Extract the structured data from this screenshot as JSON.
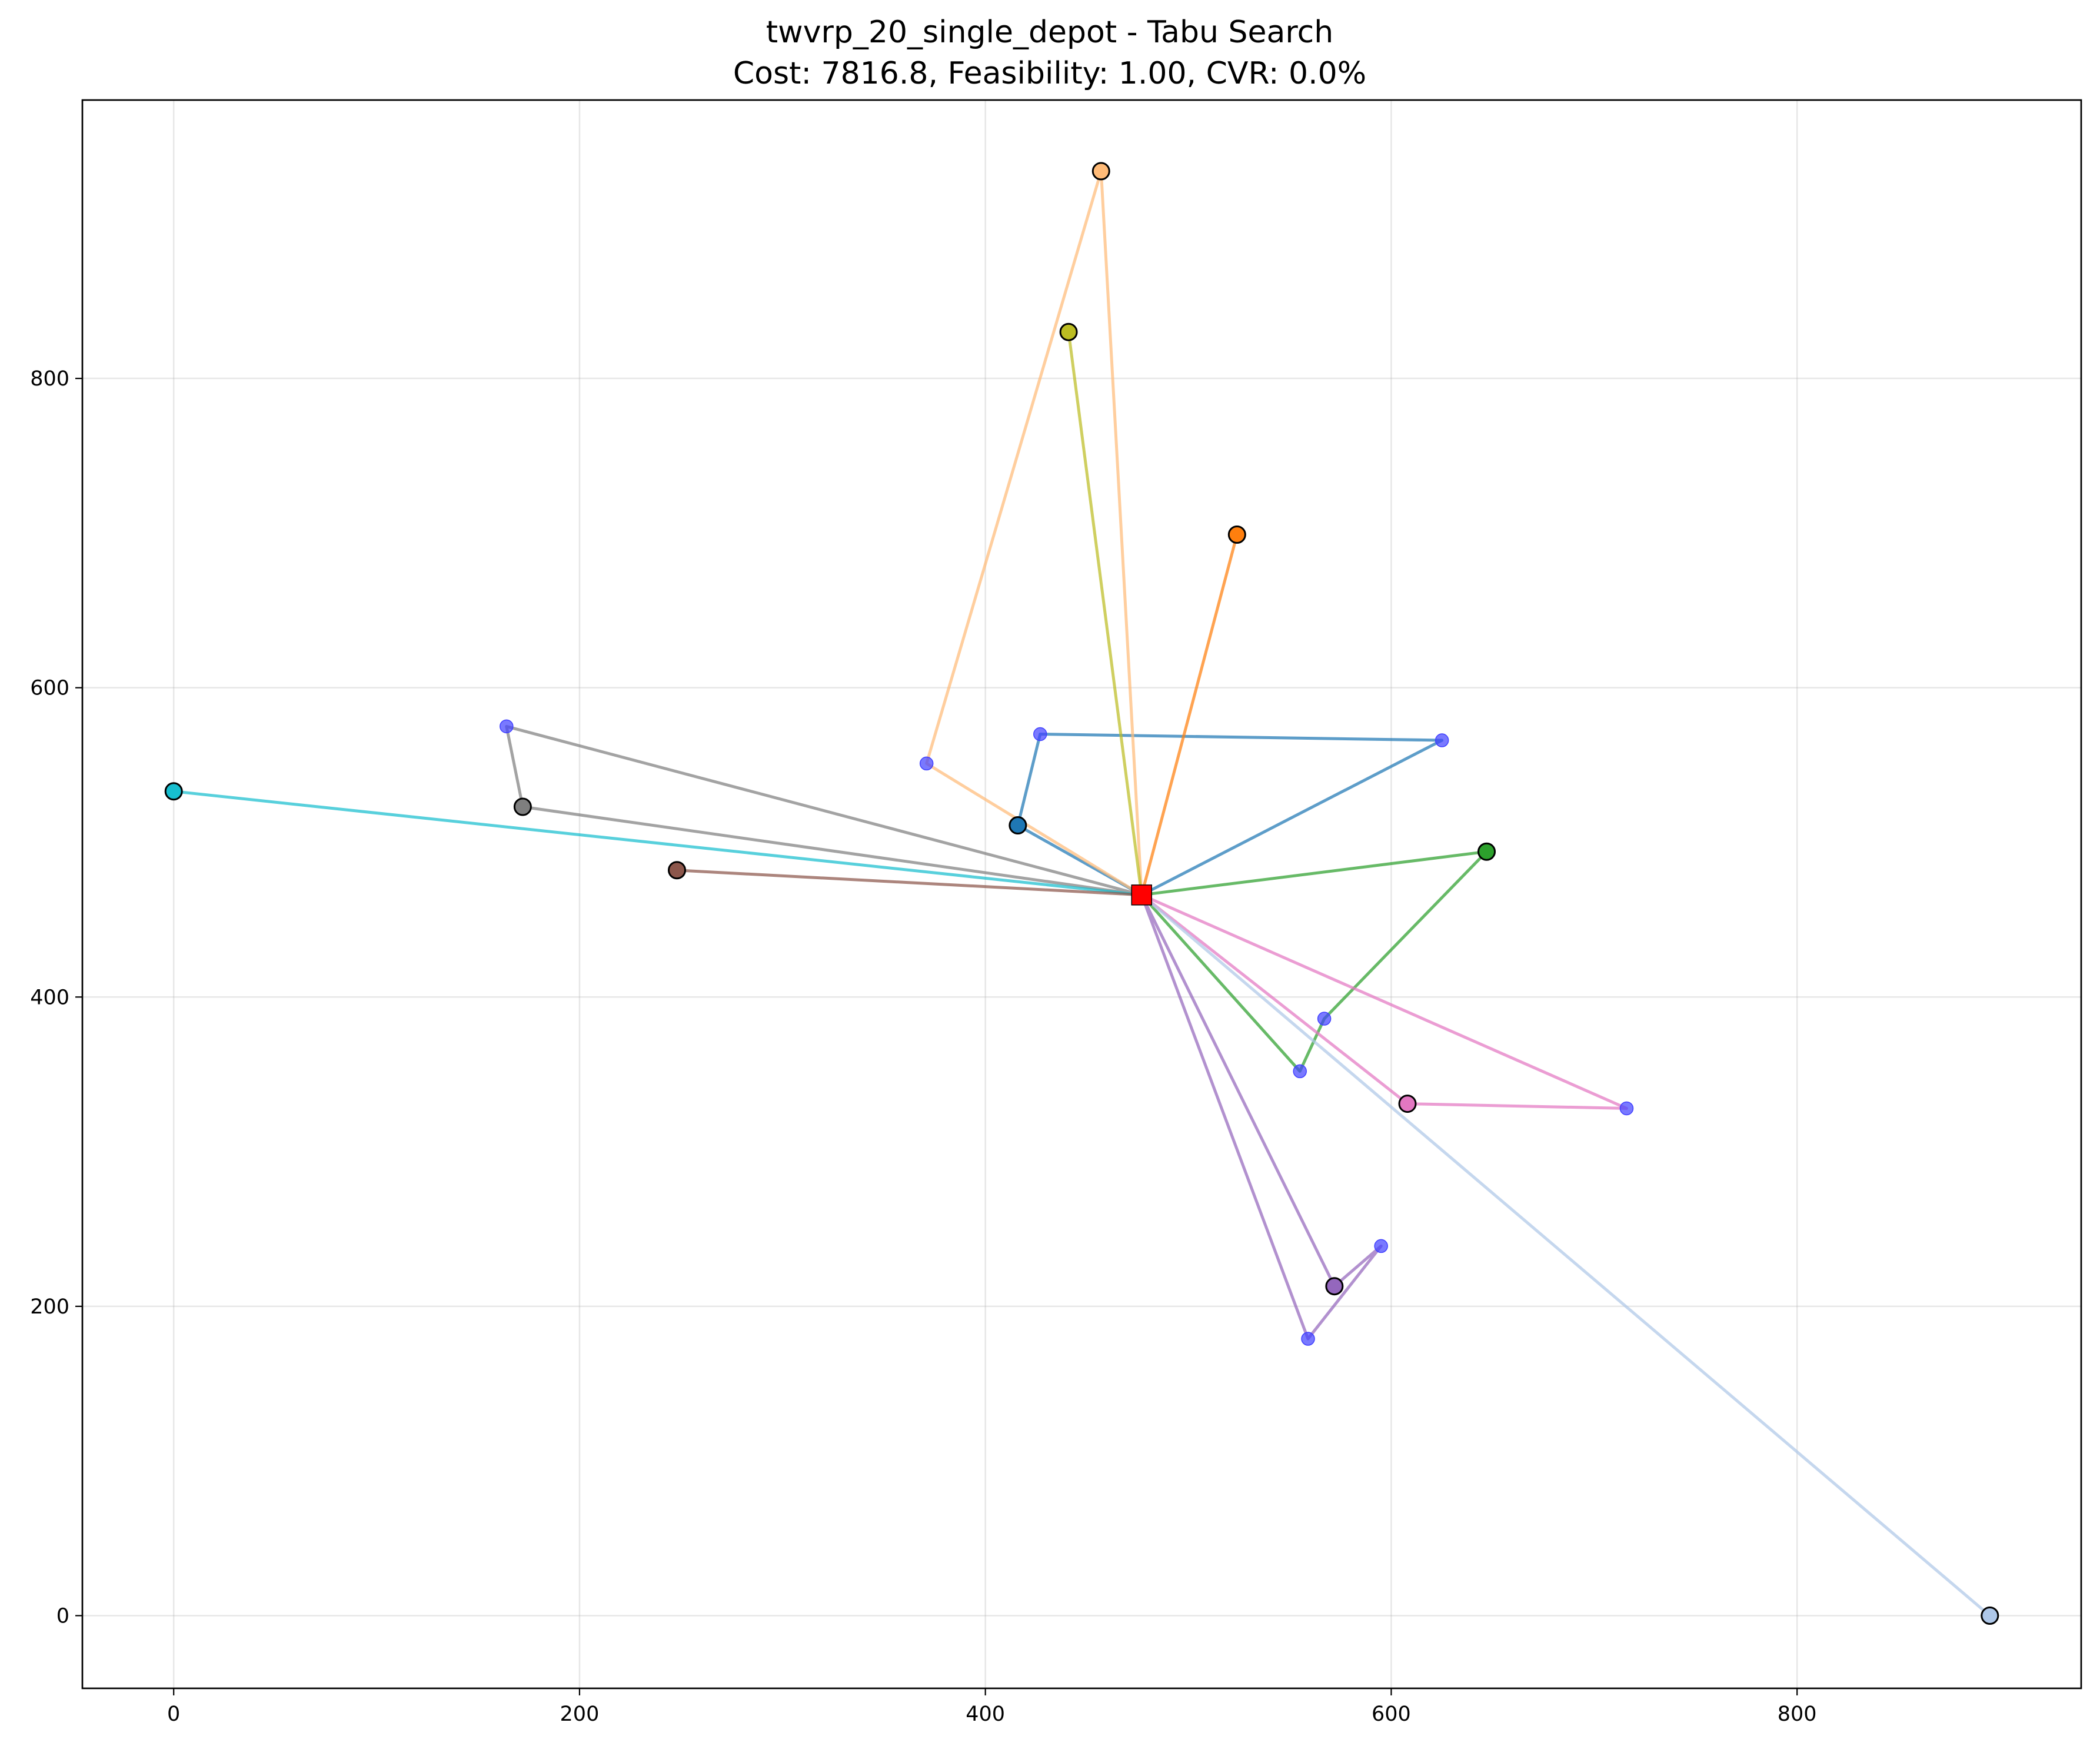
{
  "chart_data": {
    "type": "scatter",
    "title": "twvrp_20_single_depot - Tabu Search",
    "subtitle": "Cost: 7816.8, Feasibility: 1.00, CVR: 0.0%",
    "xlabel": "",
    "ylabel": "",
    "xlim": [
      -45,
      940
    ],
    "ylim": [
      -47,
      980
    ],
    "xticks": [
      0,
      200,
      400,
      600,
      800
    ],
    "yticks": [
      0,
      200,
      400,
      600,
      800
    ],
    "grid": true,
    "depot": {
      "x": 477,
      "y": 466,
      "color": "#ff0000",
      "marker": "square"
    },
    "routes": [
      {
        "color": "#1f77b4",
        "points": [
          [
            477,
            466
          ],
          [
            625,
            566
          ],
          [
            427,
            570
          ],
          [
            416,
            511
          ],
          [
            477,
            466
          ]
        ]
      },
      {
        "color": "#ff7f0e",
        "points": [
          [
            477,
            466
          ],
          [
            524,
            699
          ],
          [
            477,
            466
          ]
        ]
      },
      {
        "color": "#ffbb78",
        "points": [
          [
            477,
            466
          ],
          [
            371,
            551
          ],
          [
            457,
            934
          ],
          [
            477,
            466
          ]
        ]
      },
      {
        "color": "#bcbd22",
        "points": [
          [
            477,
            466
          ],
          [
            441,
            830
          ],
          [
            477,
            466
          ]
        ]
      },
      {
        "color": "#2ca02c",
        "points": [
          [
            477,
            466
          ],
          [
            555,
            352
          ],
          [
            567,
            386
          ],
          [
            647,
            494
          ],
          [
            477,
            466
          ]
        ]
      },
      {
        "color": "#e377c2",
        "points": [
          [
            477,
            466
          ],
          [
            716,
            328
          ],
          [
            608,
            331
          ],
          [
            477,
            466
          ]
        ]
      },
      {
        "color": "#9467bd",
        "points": [
          [
            477,
            466
          ],
          [
            559,
            179
          ],
          [
            595,
            239
          ],
          [
            572,
            213
          ],
          [
            477,
            466
          ]
        ]
      },
      {
        "color": "#aec7e8",
        "points": [
          [
            477,
            466
          ],
          [
            895,
            0
          ],
          [
            477,
            466
          ]
        ]
      },
      {
        "color": "#7f7f7f",
        "points": [
          [
            477,
            466
          ],
          [
            164,
            575
          ],
          [
            172,
            523
          ],
          [
            477,
            466
          ]
        ]
      },
      {
        "color": "#17becf",
        "points": [
          [
            477,
            466
          ],
          [
            0,
            533
          ],
          [
            477,
            466
          ]
        ]
      },
      {
        "color": "#8c564b",
        "points": [
          [
            477,
            466
          ],
          [
            248,
            482
          ],
          [
            477,
            466
          ]
        ]
      }
    ],
    "route_start_markers": [
      {
        "x": 416,
        "y": 511,
        "color": "#1f77b4"
      },
      {
        "x": 524,
        "y": 699,
        "color": "#ff7f0e"
      },
      {
        "x": 457,
        "y": 934,
        "color": "#ffbb78"
      },
      {
        "x": 441,
        "y": 830,
        "color": "#bcbd22"
      },
      {
        "x": 647,
        "y": 494,
        "color": "#2ca02c"
      },
      {
        "x": 608,
        "y": 331,
        "color": "#e377c2"
      },
      {
        "x": 572,
        "y": 213,
        "color": "#9467bd"
      },
      {
        "x": 895,
        "y": 0,
        "color": "#aec7e8"
      },
      {
        "x": 172,
        "y": 523,
        "color": "#7f7f7f"
      },
      {
        "x": 0,
        "y": 533,
        "color": "#17becf"
      },
      {
        "x": 248,
        "y": 482,
        "color": "#8c564b"
      }
    ],
    "customers": [
      {
        "x": 625,
        "y": 566
      },
      {
        "x": 427,
        "y": 570
      },
      {
        "x": 371,
        "y": 551
      },
      {
        "x": 164,
        "y": 575
      },
      {
        "x": 567,
        "y": 386
      },
      {
        "x": 555,
        "y": 352
      },
      {
        "x": 716,
        "y": 328
      },
      {
        "x": 595,
        "y": 239
      },
      {
        "x": 559,
        "y": 179
      }
    ],
    "customer_color": "#4040ff"
  }
}
